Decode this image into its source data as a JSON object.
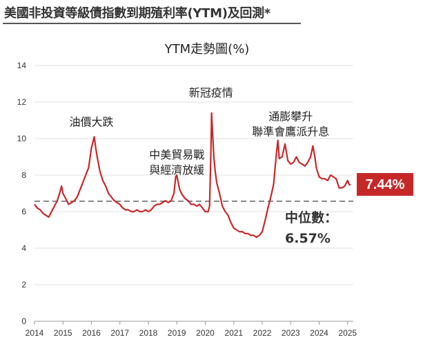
{
  "page": {
    "title": "美國非投資等級債指數到期殖利率(YTM)及回測*"
  },
  "chart_data": {
    "type": "line",
    "title": "YTM走勢圖(%)",
    "xlabel": "",
    "ylabel": "",
    "xlim": [
      2014,
      2025.2
    ],
    "ylim": [
      0,
      14
    ],
    "y_ticks": [
      "0",
      "2",
      "4",
      "6",
      "8",
      "10",
      "12",
      "14"
    ],
    "x_ticks": [
      "2014",
      "2015",
      "2016",
      "2017",
      "2018",
      "2019",
      "2020",
      "2021",
      "2022",
      "2023",
      "2024",
      "2025"
    ],
    "series_color": "#c62828",
    "median_color": "#777777",
    "median": 6.57,
    "median_label_line1": "中位數：",
    "median_label_line2": "6.57%",
    "latest_label": "7.44%",
    "latest_value": 7.44,
    "annotations": [
      {
        "lines": [
          "油價大跌"
        ],
        "x": 2016.0,
        "y": 10.7
      },
      {
        "lines": [
          "中美貿易戰",
          "與經濟放緩"
        ],
        "x": 2019.0,
        "y": 8.9
      },
      {
        "lines": [
          "新冠疫情"
        ],
        "x": 2020.2,
        "y": 12.3
      },
      {
        "lines": [
          "通膨攀升",
          "聯準會鷹派升息"
        ],
        "x": 2023.0,
        "y": 11.0
      }
    ],
    "series": [
      {
        "points": [
          [
            2014.0,
            6.4
          ],
          [
            2014.1,
            6.2
          ],
          [
            2014.2,
            6.1
          ],
          [
            2014.3,
            5.9
          ],
          [
            2014.4,
            5.8
          ],
          [
            2014.5,
            5.7
          ],
          [
            2014.6,
            6.0
          ],
          [
            2014.7,
            6.3
          ],
          [
            2014.8,
            6.6
          ],
          [
            2014.88,
            7.0
          ],
          [
            2014.95,
            7.4
          ],
          [
            2015.0,
            7.0
          ],
          [
            2015.1,
            6.7
          ],
          [
            2015.2,
            6.4
          ],
          [
            2015.3,
            6.5
          ],
          [
            2015.4,
            6.6
          ],
          [
            2015.5,
            6.8
          ],
          [
            2015.6,
            7.2
          ],
          [
            2015.7,
            7.6
          ],
          [
            2015.8,
            8.0
          ],
          [
            2015.9,
            8.4
          ],
          [
            2016.0,
            9.5
          ],
          [
            2016.05,
            9.8
          ],
          [
            2016.1,
            10.1
          ],
          [
            2016.15,
            9.5
          ],
          [
            2016.2,
            9.0
          ],
          [
            2016.3,
            8.2
          ],
          [
            2016.4,
            7.7
          ],
          [
            2016.5,
            7.4
          ],
          [
            2016.6,
            7.0
          ],
          [
            2016.7,
            6.8
          ],
          [
            2016.8,
            6.6
          ],
          [
            2016.9,
            6.5
          ],
          [
            2017.0,
            6.4
          ],
          [
            2017.1,
            6.2
          ],
          [
            2017.2,
            6.1
          ],
          [
            2017.3,
            6.1
          ],
          [
            2017.4,
            6.0
          ],
          [
            2017.5,
            6.0
          ],
          [
            2017.6,
            6.1
          ],
          [
            2017.7,
            6.0
          ],
          [
            2017.8,
            6.0
          ],
          [
            2017.9,
            6.1
          ],
          [
            2018.0,
            6.0
          ],
          [
            2018.1,
            6.1
          ],
          [
            2018.2,
            6.3
          ],
          [
            2018.3,
            6.4
          ],
          [
            2018.4,
            6.4
          ],
          [
            2018.5,
            6.5
          ],
          [
            2018.6,
            6.6
          ],
          [
            2018.7,
            6.5
          ],
          [
            2018.8,
            6.6
          ],
          [
            2018.9,
            7.0
          ],
          [
            2018.96,
            7.9
          ],
          [
            2019.0,
            8.0
          ],
          [
            2019.05,
            7.6
          ],
          [
            2019.1,
            7.2
          ],
          [
            2019.2,
            6.9
          ],
          [
            2019.3,
            6.7
          ],
          [
            2019.4,
            6.6
          ],
          [
            2019.5,
            6.4
          ],
          [
            2019.6,
            6.4
          ],
          [
            2019.7,
            6.3
          ],
          [
            2019.8,
            6.4
          ],
          [
            2019.9,
            6.2
          ],
          [
            2020.0,
            6.0
          ],
          [
            2020.1,
            6.0
          ],
          [
            2020.15,
            6.3
          ],
          [
            2020.2,
            9.5
          ],
          [
            2020.22,
            11.4
          ],
          [
            2020.25,
            10.5
          ],
          [
            2020.3,
            9.0
          ],
          [
            2020.35,
            8.2
          ],
          [
            2020.4,
            7.6
          ],
          [
            2020.5,
            7.0
          ],
          [
            2020.6,
            6.3
          ],
          [
            2020.7,
            6.0
          ],
          [
            2020.8,
            5.8
          ],
          [
            2020.9,
            5.4
          ],
          [
            2021.0,
            5.1
          ],
          [
            2021.1,
            5.0
          ],
          [
            2021.2,
            4.9
          ],
          [
            2021.3,
            4.9
          ],
          [
            2021.4,
            4.8
          ],
          [
            2021.5,
            4.8
          ],
          [
            2021.6,
            4.7
          ],
          [
            2021.7,
            4.7
          ],
          [
            2021.8,
            4.6
          ],
          [
            2021.9,
            4.7
          ],
          [
            2022.0,
            4.9
          ],
          [
            2022.1,
            5.5
          ],
          [
            2022.2,
            6.2
          ],
          [
            2022.3,
            6.8
          ],
          [
            2022.4,
            7.5
          ],
          [
            2022.5,
            9.2
          ],
          [
            2022.55,
            9.9
          ],
          [
            2022.6,
            8.9
          ],
          [
            2022.7,
            9.0
          ],
          [
            2022.8,
            9.7
          ],
          [
            2022.9,
            8.8
          ],
          [
            2023.0,
            8.6
          ],
          [
            2023.1,
            8.7
          ],
          [
            2023.2,
            9.0
          ],
          [
            2023.3,
            8.7
          ],
          [
            2023.4,
            8.6
          ],
          [
            2023.5,
            8.5
          ],
          [
            2023.6,
            8.7
          ],
          [
            2023.7,
            9.0
          ],
          [
            2023.78,
            9.6
          ],
          [
            2023.85,
            9.0
          ],
          [
            2023.9,
            8.4
          ],
          [
            2024.0,
            7.9
          ],
          [
            2024.1,
            7.8
          ],
          [
            2024.2,
            7.8
          ],
          [
            2024.3,
            7.7
          ],
          [
            2024.4,
            8.0
          ],
          [
            2024.5,
            7.9
          ],
          [
            2024.6,
            7.8
          ],
          [
            2024.7,
            7.3
          ],
          [
            2024.8,
            7.3
          ],
          [
            2024.9,
            7.4
          ],
          [
            2025.0,
            7.7
          ],
          [
            2025.05,
            7.5
          ],
          [
            2025.1,
            7.44
          ]
        ]
      }
    ]
  }
}
